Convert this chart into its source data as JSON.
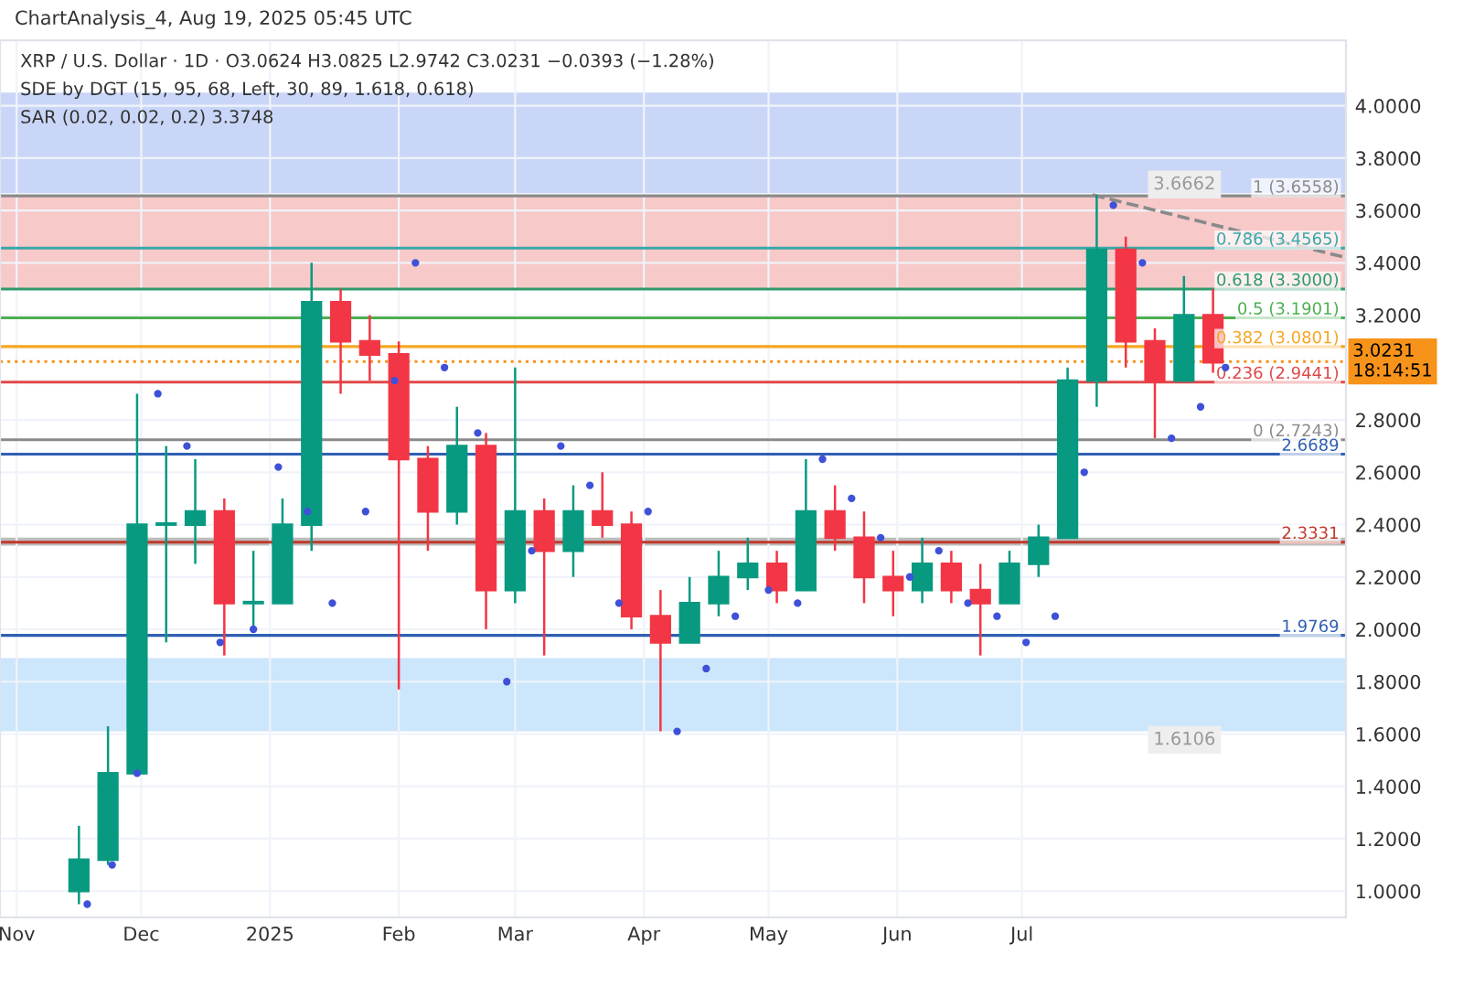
{
  "chart_data": {
    "type": "candlestick",
    "title": "ChartAnalysis_4, Aug 19, 2025 05:45 UTC",
    "subtitle": "XRP / U.S. Dollar · 1D · O3.0624 H3.0825 L2.9742 C3.0231 −0.0393 (−1.28%)",
    "annotations": [
      "SDE by DGT (15, 95, 68, Left, 30, 89, 1.618, 0.618)",
      "SAR (0.02, 0.02, 0.2) 3.3748"
    ],
    "x": [
      "2024-11-16",
      "2024-11-23",
      "2024-11-30",
      "2024-12-07",
      "2024-12-14",
      "2024-12-21",
      "2024-12-28",
      "2025-01-04",
      "2025-01-11",
      "2025-01-18",
      "2025-01-25",
      "2025-02-01",
      "2025-02-08",
      "2025-02-15",
      "2025-02-22",
      "2025-03-01",
      "2025-03-08",
      "2025-03-15",
      "2025-03-22",
      "2025-03-29",
      "2025-04-05",
      "2025-04-12",
      "2025-04-19",
      "2025-04-26",
      "2025-05-03",
      "2025-05-10",
      "2025-05-17",
      "2025-05-24",
      "2025-05-31",
      "2025-06-07",
      "2025-06-14",
      "2025-06-21",
      "2025-06-28",
      "2025-07-05",
      "2025-07-12",
      "2025-07-19",
      "2025-07-26",
      "2025-08-02",
      "2025-08-09",
      "2025-08-16"
    ],
    "ohlc": [
      [
        1.0,
        1.25,
        0.95,
        1.12
      ],
      [
        1.12,
        1.63,
        1.1,
        1.45
      ],
      [
        1.45,
        2.9,
        1.45,
        2.4
      ],
      [
        2.4,
        2.7,
        1.95,
        2.4
      ],
      [
        2.4,
        2.65,
        2.25,
        2.45
      ],
      [
        2.45,
        2.5,
        1.9,
        2.1
      ],
      [
        2.1,
        2.3,
        2.0,
        2.1
      ],
      [
        2.1,
        2.5,
        2.1,
        2.4
      ],
      [
        2.4,
        3.4,
        2.3,
        3.25
      ],
      [
        3.25,
        3.3,
        2.9,
        3.1
      ],
      [
        3.1,
        3.2,
        2.95,
        3.05
      ],
      [
        3.05,
        3.1,
        1.77,
        2.65
      ],
      [
        2.65,
        2.7,
        2.3,
        2.45
      ],
      [
        2.45,
        2.85,
        2.4,
        2.7
      ],
      [
        2.7,
        2.75,
        2.0,
        2.15
      ],
      [
        2.15,
        3.0,
        2.1,
        2.45
      ],
      [
        2.45,
        2.5,
        1.9,
        2.3
      ],
      [
        2.3,
        2.55,
        2.2,
        2.45
      ],
      [
        2.45,
        2.6,
        2.35,
        2.4
      ],
      [
        2.4,
        2.45,
        2.0,
        2.05
      ],
      [
        2.05,
        2.15,
        1.61,
        1.95
      ],
      [
        1.95,
        2.2,
        1.95,
        2.1
      ],
      [
        2.1,
        2.3,
        2.05,
        2.2
      ],
      [
        2.2,
        2.35,
        2.15,
        2.25
      ],
      [
        2.25,
        2.3,
        2.1,
        2.15
      ],
      [
        2.15,
        2.65,
        2.15,
        2.45
      ],
      [
        2.45,
        2.55,
        2.3,
        2.35
      ],
      [
        2.35,
        2.45,
        2.1,
        2.2
      ],
      [
        2.2,
        2.3,
        2.05,
        2.15
      ],
      [
        2.15,
        2.35,
        2.1,
        2.25
      ],
      [
        2.25,
        2.3,
        2.1,
        2.15
      ],
      [
        2.15,
        2.25,
        1.9,
        2.1
      ],
      [
        2.1,
        2.3,
        2.1,
        2.25
      ],
      [
        2.25,
        2.4,
        2.2,
        2.35
      ],
      [
        2.35,
        3.0,
        2.35,
        2.95
      ],
      [
        2.95,
        3.66,
        2.85,
        3.45
      ],
      [
        3.45,
        3.5,
        3.0,
        3.1
      ],
      [
        3.1,
        3.15,
        2.73,
        2.95
      ],
      [
        2.95,
        3.35,
        2.95,
        3.2
      ],
      [
        3.2,
        3.3,
        2.98,
        3.02
      ]
    ],
    "colors": [
      "#089981",
      "#089981",
      "#089981",
      "#089981",
      "#089981",
      "#f23645",
      "#089981",
      "#089981",
      "#089981",
      "#f23645",
      "#f23645",
      "#f23645",
      "#f23645",
      "#089981",
      "#f23645",
      "#089981",
      "#f23645",
      "#089981",
      "#f23645",
      "#f23645",
      "#f23645",
      "#089981",
      "#089981",
      "#089981",
      "#f23645",
      "#089981",
      "#f23645",
      "#f23645",
      "#f23645",
      "#089981",
      "#f23645",
      "#f23645",
      "#089981",
      "#089981",
      "#089981",
      "#089981",
      "#f23645",
      "#f23645",
      "#089981",
      "#f23645"
    ],
    "series": [
      {
        "type": "scatter",
        "color": "#3f51d8",
        "x": [
          "2024-11-18",
          "2024-11-24",
          "2024-11-30",
          "2024-12-05",
          "2024-12-12",
          "2024-12-20",
          "2024-12-28",
          "2025-01-03",
          "2025-01-10",
          "2025-01-16",
          "2025-01-24",
          "2025-01-31",
          "2025-02-05",
          "2025-02-12",
          "2025-02-20",
          "2025-02-27",
          "2025-03-05",
          "2025-03-12",
          "2025-03-19",
          "2025-03-26",
          "2025-04-02",
          "2025-04-09",
          "2025-04-16",
          "2025-04-23",
          "2025-05-01",
          "2025-05-08",
          "2025-05-14",
          "2025-05-21",
          "2025-05-28",
          "2025-06-04",
          "2025-06-11",
          "2025-06-18",
          "2025-06-25",
          "2025-07-02",
          "2025-07-09",
          "2025-07-16",
          "2025-07-23",
          "2025-07-30",
          "2025-08-06",
          "2025-08-13",
          "2025-08-19"
        ],
        "values": [
          0.95,
          1.1,
          1.45,
          2.9,
          2.7,
          1.95,
          2.0,
          2.62,
          2.45,
          2.1,
          2.45,
          2.95,
          3.4,
          3.0,
          2.75,
          1.8,
          2.3,
          2.7,
          2.55,
          2.1,
          2.45,
          1.61,
          1.85,
          2.05,
          2.15,
          2.1,
          2.65,
          2.5,
          2.35,
          2.2,
          2.3,
          2.1,
          2.05,
          1.95,
          2.05,
          2.6,
          3.62,
          3.4,
          2.73,
          2.85,
          3.0
        ]
      },
      {
        "type": "line",
        "color": "#8a8a8a",
        "line_style": "dashed",
        "x": [
          "2025-07-18",
          "2025-09-17"
        ],
        "values": [
          3.66,
          3.42
        ]
      }
    ],
    "ref_lines": [
      {
        "axis": "y",
        "value": 3.6558,
        "label": "1 (3.6558)",
        "color": "#8a8a8a"
      },
      {
        "axis": "y",
        "value": 3.4565,
        "label": "0.786 (3.4565)",
        "color": "#3aa6a6"
      },
      {
        "axis": "y",
        "value": 3.3,
        "label": "0.618 (3.3000)",
        "color": "#2e9b6b"
      },
      {
        "axis": "y",
        "value": 3.1901,
        "label": "0.5 (3.1901)",
        "color": "#4caf50"
      },
      {
        "axis": "y",
        "value": 3.0801,
        "label": "0.382 (3.0801)",
        "color": "#f5a623"
      },
      {
        "axis": "y",
        "value": 2.9441,
        "label": "0.236 (2.9441)",
        "color": "#e04848"
      },
      {
        "axis": "y",
        "value": 2.7243,
        "label": "0 (2.7243)",
        "color": "#8a8a8a"
      },
      {
        "axis": "y",
        "value": 2.6689,
        "label": "2.6689",
        "color": "#2f5fb3"
      },
      {
        "axis": "y",
        "value": 2.3331,
        "label": "2.3331",
        "color": "#c0392b"
      },
      {
        "axis": "y",
        "value": 1.9769,
        "label": "1.9769",
        "color": "#2f5fb3"
      },
      {
        "axis": "y",
        "value": 3.0231,
        "label": "3.0231\n18:14:51",
        "color": "#f7931a",
        "line_style": "dotted"
      }
    ],
    "bands": [
      {
        "axis": "y",
        "from": 3.3,
        "to": 3.6558,
        "color": "#f7c9c9"
      },
      {
        "axis": "y",
        "from": 2.32,
        "to": 2.35,
        "color": "#bdbdbd"
      },
      {
        "axis": "y",
        "from": 1.6106,
        "to": 1.89,
        "label": "1.6106",
        "color": "#cce6fb"
      },
      {
        "axis": "y",
        "from": 3.6662,
        "to": 4.05,
        "label": "3.6662",
        "color": "#c9d6f7"
      }
    ],
    "xlim": [
      "2024-10-28",
      "2025-09-17"
    ],
    "xticks": [
      {
        "value": "2024-11-01",
        "label": "Nov"
      },
      {
        "value": "2024-12-01",
        "label": "Dec"
      },
      {
        "value": "2025-01-01",
        "label": "2025"
      },
      {
        "value": "2025-02-01",
        "label": "Feb"
      },
      {
        "value": "2025-03-01",
        "label": "Mar"
      },
      {
        "value": "2025-04-01",
        "label": "Apr"
      },
      {
        "value": "2025-05-01",
        "label": "May"
      },
      {
        "value": "2025-06-01",
        "label": "Jun"
      },
      {
        "value": "2025-07-01",
        "label": "Jul"
      }
    ],
    "ylim": [
      0.9,
      4.25
    ],
    "yticks": [
      {
        "value": 1.0,
        "label": "1.0000"
      },
      {
        "value": 1.2,
        "label": "1.2000"
      },
      {
        "value": 1.4,
        "label": "1.4000"
      },
      {
        "value": 1.6,
        "label": "1.6000"
      },
      {
        "value": 1.8,
        "label": "1.8000"
      },
      {
        "value": 2.0,
        "label": "2.0000"
      },
      {
        "value": 2.2,
        "label": "2.2000"
      },
      {
        "value": 2.4,
        "label": "2.4000"
      },
      {
        "value": 2.6,
        "label": "2.6000"
      },
      {
        "value": 2.8,
        "label": "2.8000"
      },
      {
        "value": 3.2,
        "label": "3.2000"
      },
      {
        "value": 3.4,
        "label": "3.4000"
      },
      {
        "value": 3.6,
        "label": "3.6000"
      },
      {
        "value": 3.8,
        "label": "3.8000"
      },
      {
        "value": 4.0,
        "label": "4.0000"
      }
    ],
    "grid": true
  }
}
